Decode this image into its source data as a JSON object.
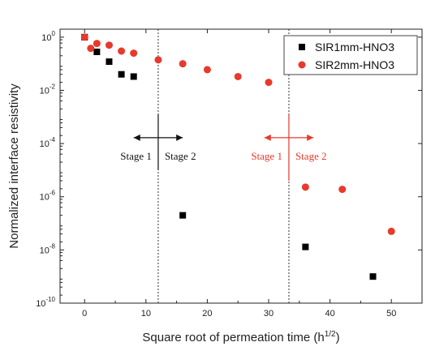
{
  "chart_data": {
    "type": "scatter",
    "title": "",
    "xlabel": "Square root of permeation time (h",
    "xlabel_sup": "1/2",
    "xlabel_suffix": ")",
    "ylabel": "Normalized interface resistivity",
    "xlim": [
      -4,
      55
    ],
    "ylim_log10": [
      -10,
      0.3
    ],
    "y_scale": "log",
    "x_ticks": [
      0,
      10,
      20,
      30,
      40,
      50
    ],
    "y_ticks": [
      {
        "mantissa": "10",
        "exp": "0",
        "value": 0
      },
      {
        "mantissa": "10",
        "exp": "-2",
        "value": -2
      },
      {
        "mantissa": "10",
        "exp": "-4",
        "value": -4
      },
      {
        "mantissa": "10",
        "exp": "-6",
        "value": -6
      },
      {
        "mantissa": "10",
        "exp": "-8",
        "value": -8
      },
      {
        "mantissa": "10",
        "exp": "-10",
        "value": -10
      }
    ],
    "grid": false,
    "legend_position": "top-right",
    "series": [
      {
        "name": "SIR1mm-HNO3",
        "marker": "square",
        "color": "#000000",
        "points": [
          [
            0,
            1.0
          ],
          [
            2,
            0.28
          ],
          [
            4,
            0.12
          ],
          [
            6,
            0.04
          ],
          [
            8,
            0.033
          ],
          [
            16,
            2e-07
          ],
          [
            36,
            1.3e-08
          ],
          [
            47,
            1e-09
          ]
        ]
      },
      {
        "name": "SIR2mm-HNO3",
        "marker": "circle",
        "color": "#e8392c",
        "points": [
          [
            0,
            1.0
          ],
          [
            1,
            0.38
          ],
          [
            2,
            0.58
          ],
          [
            4,
            0.5
          ],
          [
            6,
            0.3
          ],
          [
            8,
            0.25
          ],
          [
            12,
            0.14
          ],
          [
            16,
            0.1
          ],
          [
            20,
            0.06
          ],
          [
            25,
            0.033
          ],
          [
            30,
            0.02
          ],
          [
            36,
            2.3e-06
          ],
          [
            42,
            1.9e-06
          ],
          [
            50,
            5e-08
          ]
        ]
      }
    ],
    "reference_lines": [
      {
        "x": 12,
        "style": "dotted",
        "color": "#333333"
      },
      {
        "x": 33.3,
        "style": "dotted",
        "color": "#333333"
      }
    ],
    "annotations": [
      {
        "x": 12,
        "y_top_log10": -2.9,
        "y_bottom_log10": -5.0,
        "y_arrow_log10": -3.78,
        "arrow_half_width": 4.0,
        "color": "#111111",
        "left_label": "Stage 1",
        "right_label": "Stage 2",
        "label_y_log10": -4.6
      },
      {
        "x": 33.3,
        "y_top_log10": -2.9,
        "y_bottom_log10": -5.4,
        "y_arrow_log10": -3.78,
        "arrow_half_width": 4.0,
        "color": "#e8392c",
        "left_label": "Stage 1",
        "right_label": "Stage 2",
        "label_y_log10": -4.6
      }
    ]
  }
}
